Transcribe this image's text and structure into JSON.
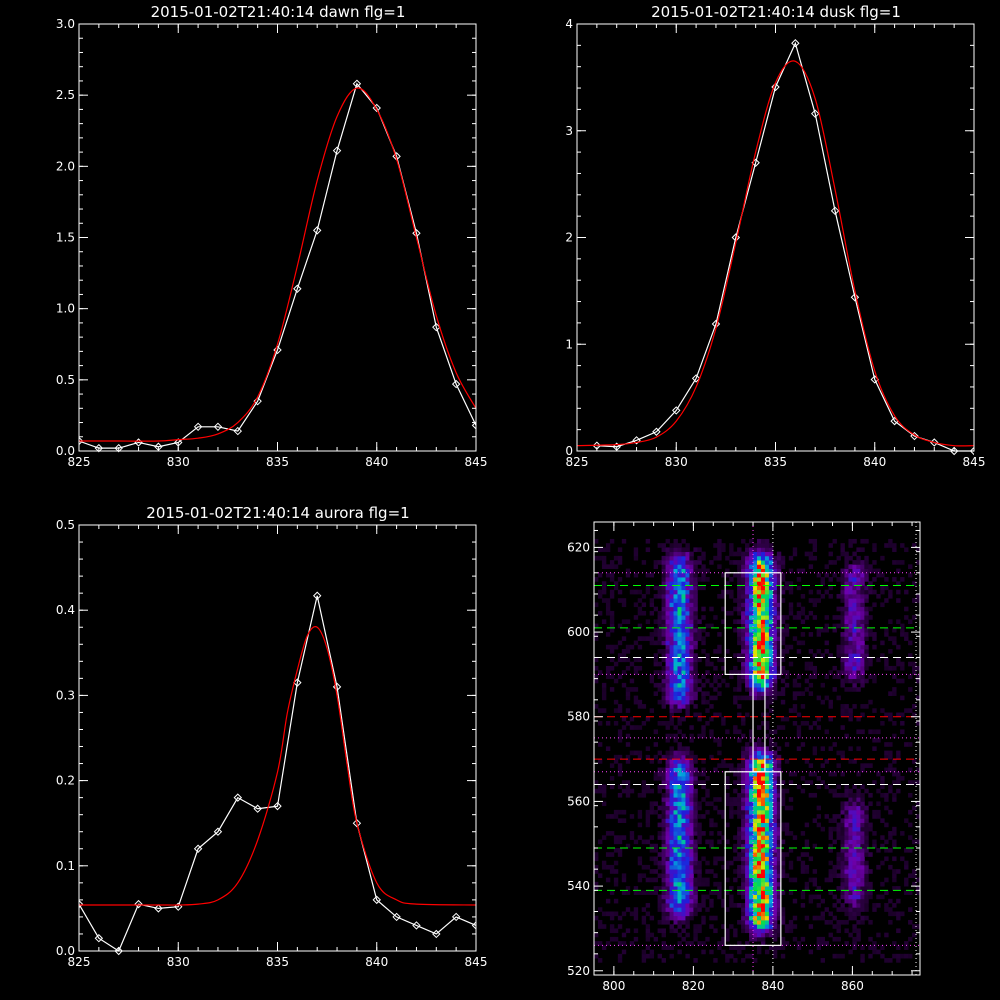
{
  "chart_data": [
    {
      "type": "line",
      "title": "2015-01-02T21:40:14 dawn flg=1",
      "xlabel": "",
      "ylabel": "",
      "xlim": [
        825,
        845
      ],
      "ylim": [
        0,
        3.0
      ],
      "xticks": [
        "825",
        "830",
        "835",
        "840",
        "845"
      ],
      "yticks": [
        "0.0",
        "0.5",
        "1.0",
        "1.5",
        "2.0",
        "2.5",
        "3.0"
      ],
      "grid": false,
      "series": [
        {
          "color": "#ffffff",
          "markers": "diamond",
          "x": [
            825,
            826,
            827,
            828,
            829,
            830,
            831,
            832,
            833,
            834,
            835,
            836,
            837,
            838,
            839,
            840,
            841,
            842,
            843,
            844,
            845
          ],
          "y": [
            0.07,
            0.02,
            0.02,
            0.06,
            0.03,
            0.06,
            0.17,
            0.17,
            0.14,
            0.35,
            0.71,
            1.14,
            1.55,
            2.11,
            2.58,
            2.41,
            2.07,
            1.53,
            0.87,
            0.47,
            0.18
          ]
        },
        {
          "color": "#ff0000",
          "markers": "none",
          "x": [
            825,
            827,
            829,
            830,
            831,
            832,
            833,
            834,
            835,
            836,
            837,
            838,
            839,
            840,
            841,
            842,
            843,
            844,
            845
          ],
          "y": [
            0.07,
            0.07,
            0.07,
            0.08,
            0.09,
            0.12,
            0.2,
            0.38,
            0.75,
            1.3,
            1.9,
            2.35,
            2.55,
            2.4,
            2.05,
            1.5,
            0.95,
            0.55,
            0.3
          ]
        }
      ]
    },
    {
      "type": "line",
      "title": "2015-01-02T21:40:14 dusk flg=1",
      "xlabel": "",
      "ylabel": "",
      "xlim": [
        825,
        845
      ],
      "ylim": [
        0,
        4
      ],
      "xticks": [
        "825",
        "830",
        "835",
        "840",
        "845"
      ],
      "yticks": [
        "0",
        "1",
        "2",
        "3",
        "4"
      ],
      "grid": false,
      "series": [
        {
          "color": "#ffffff",
          "markers": "diamond",
          "x": [
            826,
            827,
            828,
            829,
            830,
            831,
            832,
            833,
            834,
            835,
            836,
            837,
            838,
            839,
            840,
            841,
            842,
            843,
            844,
            845
          ],
          "y": [
            0.05,
            0.04,
            0.1,
            0.18,
            0.38,
            0.68,
            1.19,
            2.0,
            2.7,
            3.41,
            3.82,
            3.16,
            2.25,
            1.44,
            0.67,
            0.28,
            0.14,
            0.08,
            0.0,
            0.0
          ]
        },
        {
          "color": "#ff0000",
          "markers": "none",
          "x": [
            825,
            827,
            828,
            829,
            830,
            831,
            832,
            833,
            834,
            835,
            836,
            837,
            838,
            839,
            840,
            841,
            842,
            843,
            844,
            845
          ],
          "y": [
            0.05,
            0.06,
            0.08,
            0.13,
            0.28,
            0.6,
            1.15,
            1.95,
            2.8,
            3.45,
            3.65,
            3.3,
            2.45,
            1.5,
            0.75,
            0.33,
            0.15,
            0.08,
            0.05,
            0.05
          ]
        }
      ]
    },
    {
      "type": "line",
      "title": "2015-01-02T21:40:14 aurora flg=1",
      "xlabel": "",
      "ylabel": "",
      "xlim": [
        825,
        845
      ],
      "ylim": [
        0,
        0.5
      ],
      "xticks": [
        "825",
        "830",
        "835",
        "840",
        "845"
      ],
      "yticks": [
        "0.0",
        "0.1",
        "0.2",
        "0.3",
        "0.4",
        "0.5"
      ],
      "grid": false,
      "series": [
        {
          "color": "#ffffff",
          "markers": "diamond",
          "x": [
            825,
            826,
            827,
            828,
            829,
            830,
            831,
            832,
            833,
            834,
            835,
            836,
            837,
            838,
            839,
            840,
            841,
            842,
            843,
            844,
            845
          ],
          "y": [
            0.055,
            0.015,
            0.0,
            0.055,
            0.05,
            0.052,
            0.12,
            0.14,
            0.18,
            0.167,
            0.17,
            0.315,
            0.417,
            0.31,
            0.15,
            0.06,
            0.04,
            0.03,
            0.02,
            0.04,
            0.03
          ]
        },
        {
          "color": "#ff0000",
          "markers": "none",
          "x": [
            825,
            827,
            829,
            830,
            831,
            832,
            833,
            834,
            835,
            835.5,
            836,
            836.5,
            837,
            837.5,
            838,
            838.5,
            839,
            840,
            841,
            842,
            845
          ],
          "y": [
            0.054,
            0.054,
            0.054,
            0.054,
            0.055,
            0.06,
            0.08,
            0.13,
            0.21,
            0.28,
            0.33,
            0.37,
            0.38,
            0.355,
            0.3,
            0.22,
            0.15,
            0.08,
            0.06,
            0.055,
            0.054
          ]
        }
      ]
    },
    {
      "type": "heatmap",
      "title": "",
      "xlabel": "",
      "ylabel": "",
      "xlim": [
        795,
        877
      ],
      "ylim": [
        519,
        626
      ],
      "xticks": [
        "800",
        "820",
        "840",
        "860"
      ],
      "yticks": [
        "520",
        "540",
        "560",
        "580",
        "600",
        "620"
      ],
      "grid": false,
      "emission_columns": [
        {
          "x_center": 816,
          "x_width": 7,
          "y_ranges": [
            [
              586,
              614
            ],
            [
              536,
              566
            ]
          ],
          "intensity": 0.55
        },
        {
          "x_center": 836.5,
          "x_width": 7,
          "y_ranges": [
            [
              590,
              614
            ],
            [
              533,
              567
            ]
          ],
          "intensity": 0.95
        },
        {
          "x_center": 860,
          "x_width": 6,
          "y_ranges": [
            [
              592,
              612
            ],
            [
              538,
              556
            ]
          ],
          "intensity": 0.3
        }
      ],
      "boxes": [
        {
          "x": [
            828,
            842
          ],
          "y": [
            590,
            614
          ],
          "color": "#ffffff"
        },
        {
          "x": [
            828,
            842
          ],
          "y": [
            526,
            567
          ],
          "color": "#ffffff"
        },
        {
          "x": [
            835,
            838
          ],
          "y": [
            567,
            590
          ],
          "color": "#ffffff"
        }
      ],
      "hlines": [
        {
          "y": 614,
          "color": "#ff44ff",
          "style": "dotted"
        },
        {
          "y": 611,
          "color": "#00ff00",
          "style": "dashed"
        },
        {
          "y": 601,
          "color": "#00ff00",
          "style": "dashed"
        },
        {
          "y": 594,
          "color": "#ffffff",
          "style": "dashed"
        },
        {
          "y": 590,
          "color": "#ff44ff",
          "style": "dotted"
        },
        {
          "y": 580,
          "color": "#ff0000",
          "style": "dashed"
        },
        {
          "y": 575,
          "color": "#ff44ff",
          "style": "dotted"
        },
        {
          "y": 570,
          "color": "#ff0000",
          "style": "dashed"
        },
        {
          "y": 567,
          "color": "#ff44ff",
          "style": "dotted"
        },
        {
          "y": 564,
          "color": "#ffffff",
          "style": "dashed"
        },
        {
          "y": 549,
          "color": "#00ff00",
          "style": "dashed"
        },
        {
          "y": 539,
          "color": "#00ff00",
          "style": "dashed"
        },
        {
          "y": 526,
          "color": "#ff44ff",
          "style": "dotted"
        }
      ],
      "vlines": [
        {
          "x": 835,
          "color": "#ff44ff",
          "style": "dotted"
        },
        {
          "x": 840,
          "color": "#ffffff",
          "style": "dotted"
        },
        {
          "x": 876,
          "color": "#ffffff",
          "style": "dotted"
        }
      ]
    }
  ]
}
